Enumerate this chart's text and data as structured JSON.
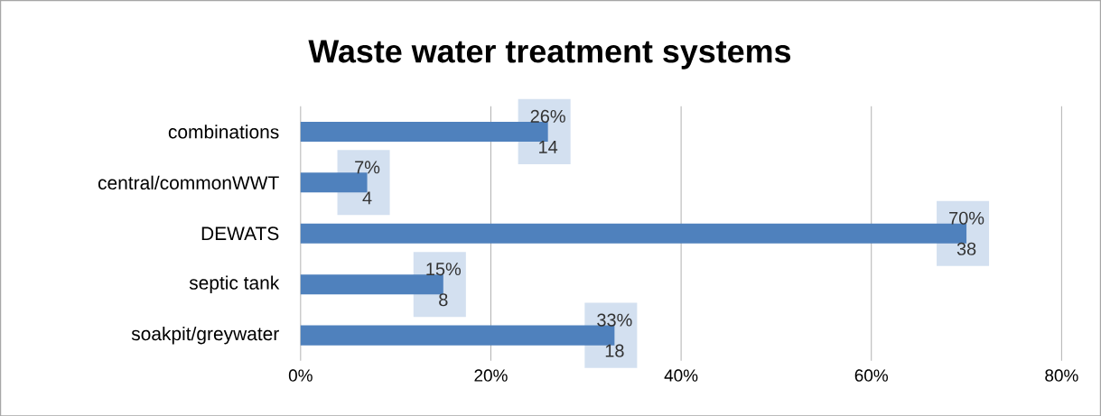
{
  "chart_data": {
    "type": "bar",
    "orientation": "horizontal",
    "title": "Waste water treatment systems",
    "categories": [
      "combinations",
      "central/commonWWT",
      "DEWATS",
      "septic tank",
      "soakpit/greywater"
    ],
    "values": [
      26,
      7,
      70,
      15,
      33
    ],
    "color": "#4f81bd",
    "value_labels": [
      "26%",
      "7%",
      "70%",
      "15%",
      "33%"
    ],
    "annotations": [
      {
        "text": "14",
        "x": 26,
        "y": "combinations"
      },
      {
        "text": "4",
        "x": 7,
        "y": "central/commonWWT"
      },
      {
        "text": "38",
        "x": 70,
        "y": "DEWATS"
      },
      {
        "text": "8",
        "x": 15,
        "y": "septic tank"
      },
      {
        "text": "18",
        "x": 33,
        "y": "soakpit/greywater"
      }
    ],
    "xlim": [
      0,
      80
    ],
    "xticks": [
      {
        "value": 0,
        "label": "0%"
      },
      {
        "value": 20,
        "label": "20%"
      },
      {
        "value": 40,
        "label": "40%"
      },
      {
        "value": 60,
        "label": "60%"
      },
      {
        "value": 80,
        "label": "80%"
      }
    ],
    "grid": "x"
  }
}
